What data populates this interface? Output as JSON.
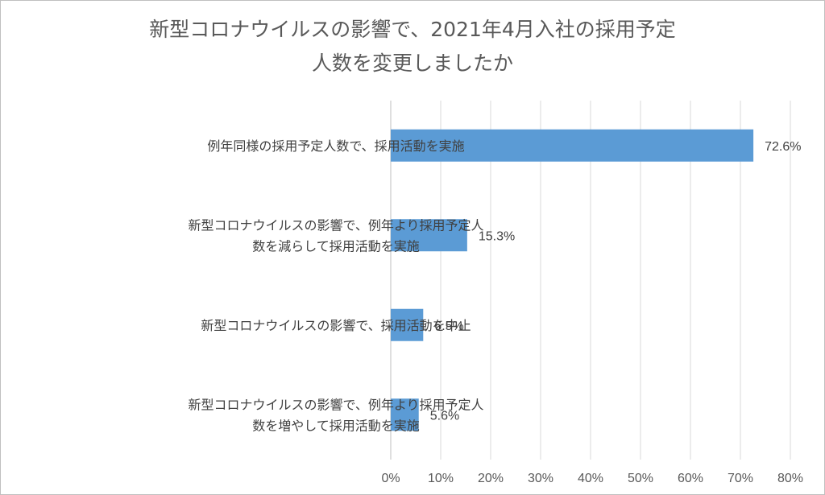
{
  "chart_data": {
    "type": "bar",
    "orientation": "horizontal",
    "title_lines": [
      "新型コロナウイルスの影響で、2021年4月入社の採用予定",
      "人数を変更しましたか"
    ],
    "categories": [
      [
        "例年同様の採用予定人数で、採用活動を実施"
      ],
      [
        "新型コロナウイルスの影響で、例年より採用予定人",
        "数を減らして採用活動を実施"
      ],
      [
        "新型コロナウイルスの影響で、採用活動を中止"
      ],
      [
        "新型コロナウイルスの影響で、例年より採用予定人",
        "数を増やして採用活動を実施"
      ]
    ],
    "values": [
      72.6,
      15.3,
      6.5,
      5.6
    ],
    "value_labels": [
      "72.6%",
      "15.3%",
      "6.5%",
      "5.6%"
    ],
    "xlim": [
      0,
      80
    ],
    "x_ticks": [
      "0%",
      "10%",
      "20%",
      "30%",
      "40%",
      "50%",
      "60%",
      "70%",
      "80%"
    ],
    "bar_color": "#5b9bd5",
    "gridlines": true,
    "legend": "none"
  }
}
